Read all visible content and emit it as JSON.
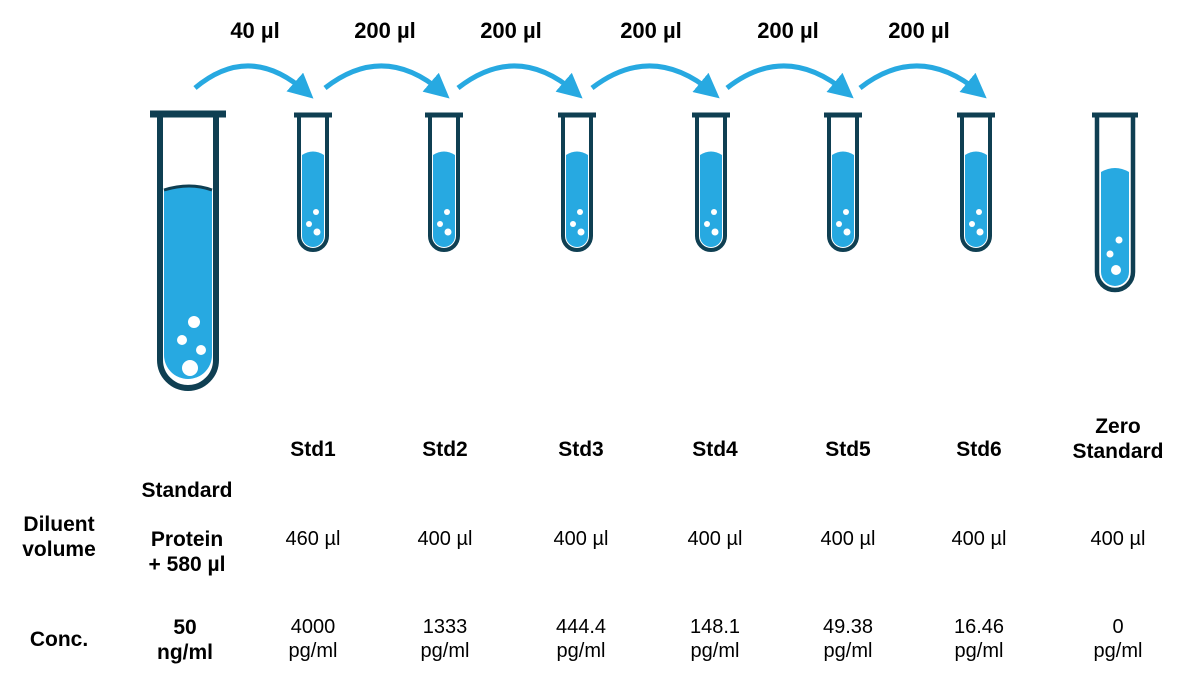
{
  "colors": {
    "liquid": "#27a9e1",
    "outline": "#0f3f52",
    "arrow": "#27a9e1",
    "bubble": "#ffffff"
  },
  "icons": {
    "tube": "test-tube-icon",
    "arrow": "curved-arrow-icon"
  },
  "transfers": [
    "40 µl",
    "200 µl",
    "200 µl",
    "200 µl",
    "200 µl",
    "200 µl"
  ],
  "standards": [
    {
      "name": "Std1",
      "diluent": "460 µl",
      "conc_value": "4000",
      "conc_unit": "pg/ml"
    },
    {
      "name": "Std2",
      "diluent": "400 µl",
      "conc_value": "1333",
      "conc_unit": "pg/ml"
    },
    {
      "name": "Std3",
      "diluent": "400 µl",
      "conc_value": "444.4",
      "conc_unit": "pg/ml"
    },
    {
      "name": "Std4",
      "diluent": "400 µl",
      "conc_value": "148.1",
      "conc_unit": "pg/ml"
    },
    {
      "name": "Std5",
      "diluent": "400 µl",
      "conc_value": "49.38",
      "conc_unit": "pg/ml"
    },
    {
      "name": "Std6",
      "diluent": "400 µl",
      "conc_value": "16.46",
      "conc_unit": "pg/ml"
    },
    {
      "name_line1": "Zero",
      "name_line2": "Standard",
      "diluent": "400 µl",
      "conc_value": "0",
      "conc_unit": "pg/ml"
    }
  ],
  "stock": {
    "line1": "Standard",
    "line2": "Protein",
    "line3": "+ 580 µl",
    "conc_value": "50",
    "conc_unit": "ng/ml"
  },
  "row_labels": {
    "diluent_line1": "Diluent",
    "diluent_line2": "volume",
    "conc": "Conc."
  }
}
